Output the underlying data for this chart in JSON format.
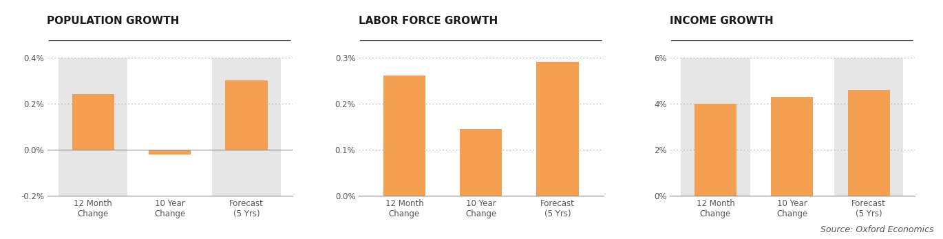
{
  "charts": [
    {
      "title": "POPULATION GROWTH",
      "categories": [
        "12 Month\nChange",
        "10 Year\nChange",
        "Forecast\n(5 Yrs)"
      ],
      "values": [
        0.0024,
        -0.0002,
        0.003
      ],
      "ylim": [
        -0.002,
        0.004
      ],
      "yticks": [
        -0.002,
        0.0,
        0.002,
        0.004
      ],
      "yticklabels": [
        "-0.2%",
        "0.0%",
        "0.2%",
        "0.4%"
      ],
      "highlighted": [
        0,
        2
      ]
    },
    {
      "title": "LABOR FORCE GROWTH",
      "categories": [
        "12 Month\nChange",
        "10 Year\nChange",
        "Forecast\n(5 Yrs)"
      ],
      "values": [
        0.0026,
        0.00145,
        0.0029
      ],
      "ylim": [
        0.0,
        0.003
      ],
      "yticks": [
        0.0,
        0.001,
        0.002,
        0.003
      ],
      "yticklabels": [
        "0.0%",
        "0.1%",
        "0.2%",
        "0.3%"
      ],
      "highlighted": []
    },
    {
      "title": "INCOME GROWTH",
      "categories": [
        "12 Month\nChange",
        "10 Year\nChange",
        "Forecast\n(5 Yrs)"
      ],
      "values": [
        0.04,
        0.043,
        0.046
      ],
      "ylim": [
        0.0,
        0.06
      ],
      "yticks": [
        0.0,
        0.02,
        0.04,
        0.06
      ],
      "yticklabels": [
        "0%",
        "2%",
        "4%",
        "6%"
      ],
      "highlighted": [
        0,
        2
      ]
    }
  ],
  "bar_color": "#F5A050",
  "highlight_bg": "#E6E6E6",
  "bg_color": "#FFFFFF",
  "title_color": "#1a1a1a",
  "tick_color": "#555555",
  "grid_color": "#AAAAAA",
  "source_text": "Source: Oxford Economics",
  "title_fontsize": 11,
  "tick_fontsize": 8.5,
  "xlabel_fontsize": 8.5
}
